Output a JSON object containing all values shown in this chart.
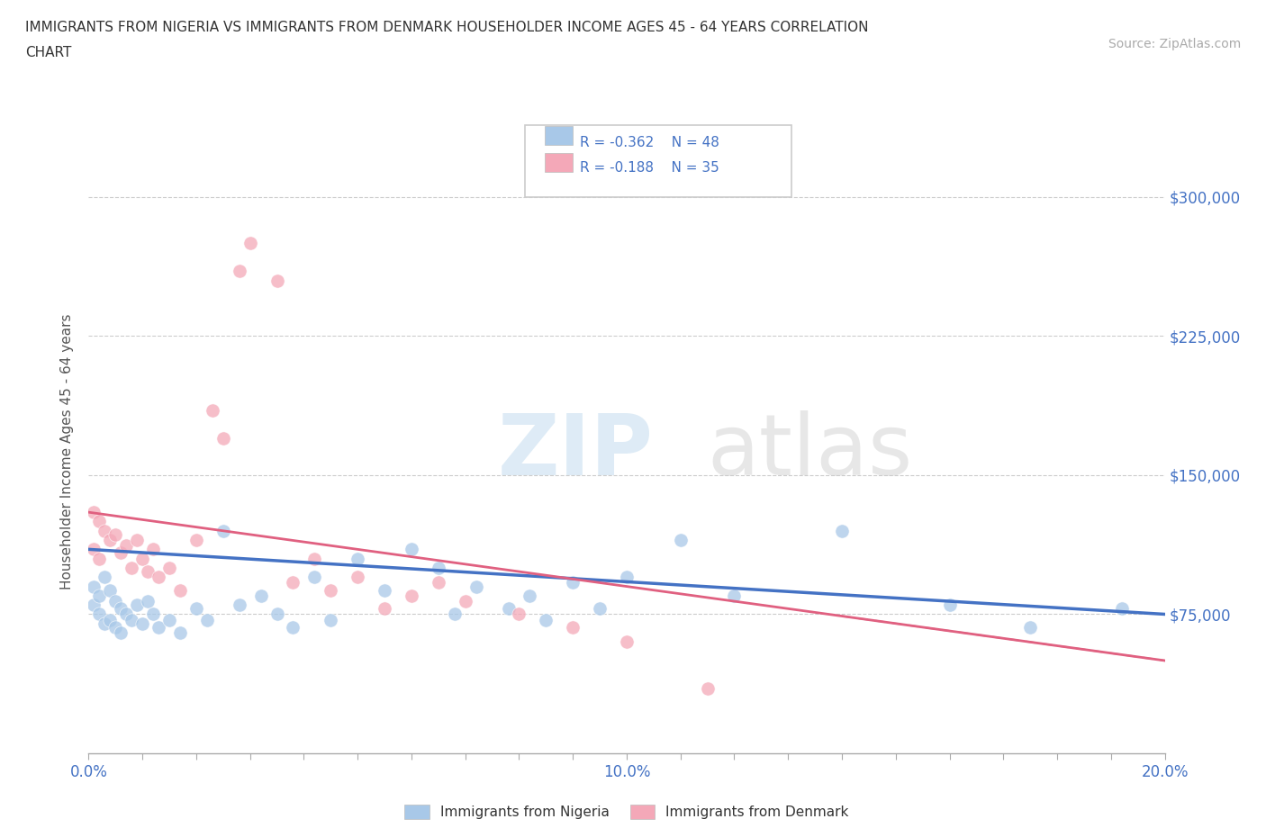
{
  "title_line1": "IMMIGRANTS FROM NIGERIA VS IMMIGRANTS FROM DENMARK HOUSEHOLDER INCOME AGES 45 - 64 YEARS CORRELATION",
  "title_line2": "CHART",
  "source": "Source: ZipAtlas.com",
  "ylabel": "Householder Income Ages 45 - 64 years",
  "xlim": [
    0.0,
    0.2
  ],
  "ylim": [
    0,
    325000
  ],
  "yticks": [
    0,
    75000,
    150000,
    225000,
    300000
  ],
  "ytick_labels": [
    "",
    "$75,000",
    "$150,000",
    "$225,000",
    "$300,000"
  ],
  "watermark_zip": "ZIP",
  "watermark_atlas": "atlas",
  "nigeria_color": "#a8c8e8",
  "denmark_color": "#f4a8b8",
  "nigeria_trend_color": "#4472c4",
  "denmark_trend_color": "#e06080",
  "legend_nigeria_R": "R = -0.362",
  "legend_nigeria_N": "N = 48",
  "legend_denmark_R": "R = -0.188",
  "legend_denmark_N": "N = 35",
  "nigeria_label": "Immigrants from Nigeria",
  "denmark_label": "Immigrants from Denmark",
  "nigeria_x": [
    0.001,
    0.001,
    0.002,
    0.002,
    0.003,
    0.003,
    0.004,
    0.004,
    0.005,
    0.005,
    0.006,
    0.006,
    0.007,
    0.008,
    0.009,
    0.01,
    0.011,
    0.012,
    0.013,
    0.015,
    0.017,
    0.02,
    0.022,
    0.025,
    0.028,
    0.032,
    0.035,
    0.038,
    0.042,
    0.045,
    0.05,
    0.055,
    0.06,
    0.065,
    0.068,
    0.072,
    0.078,
    0.082,
    0.085,
    0.09,
    0.095,
    0.1,
    0.11,
    0.12,
    0.14,
    0.16,
    0.175,
    0.192
  ],
  "nigeria_y": [
    90000,
    80000,
    85000,
    75000,
    95000,
    70000,
    88000,
    72000,
    82000,
    68000,
    78000,
    65000,
    75000,
    72000,
    80000,
    70000,
    82000,
    75000,
    68000,
    72000,
    65000,
    78000,
    72000,
    120000,
    80000,
    85000,
    75000,
    68000,
    95000,
    72000,
    105000,
    88000,
    110000,
    100000,
    75000,
    90000,
    78000,
    85000,
    72000,
    92000,
    78000,
    95000,
    115000,
    85000,
    120000,
    80000,
    68000,
    78000
  ],
  "denmark_x": [
    0.001,
    0.001,
    0.002,
    0.002,
    0.003,
    0.004,
    0.005,
    0.006,
    0.007,
    0.008,
    0.009,
    0.01,
    0.011,
    0.012,
    0.013,
    0.015,
    0.017,
    0.02,
    0.023,
    0.025,
    0.028,
    0.03,
    0.035,
    0.038,
    0.042,
    0.045,
    0.05,
    0.055,
    0.06,
    0.065,
    0.07,
    0.08,
    0.09,
    0.1,
    0.115
  ],
  "denmark_y": [
    130000,
    110000,
    125000,
    105000,
    120000,
    115000,
    118000,
    108000,
    112000,
    100000,
    115000,
    105000,
    98000,
    110000,
    95000,
    100000,
    88000,
    115000,
    185000,
    170000,
    260000,
    275000,
    255000,
    92000,
    105000,
    88000,
    95000,
    78000,
    85000,
    92000,
    82000,
    75000,
    68000,
    60000,
    35000
  ],
  "background_color": "#ffffff",
  "grid_color": "#cccccc"
}
